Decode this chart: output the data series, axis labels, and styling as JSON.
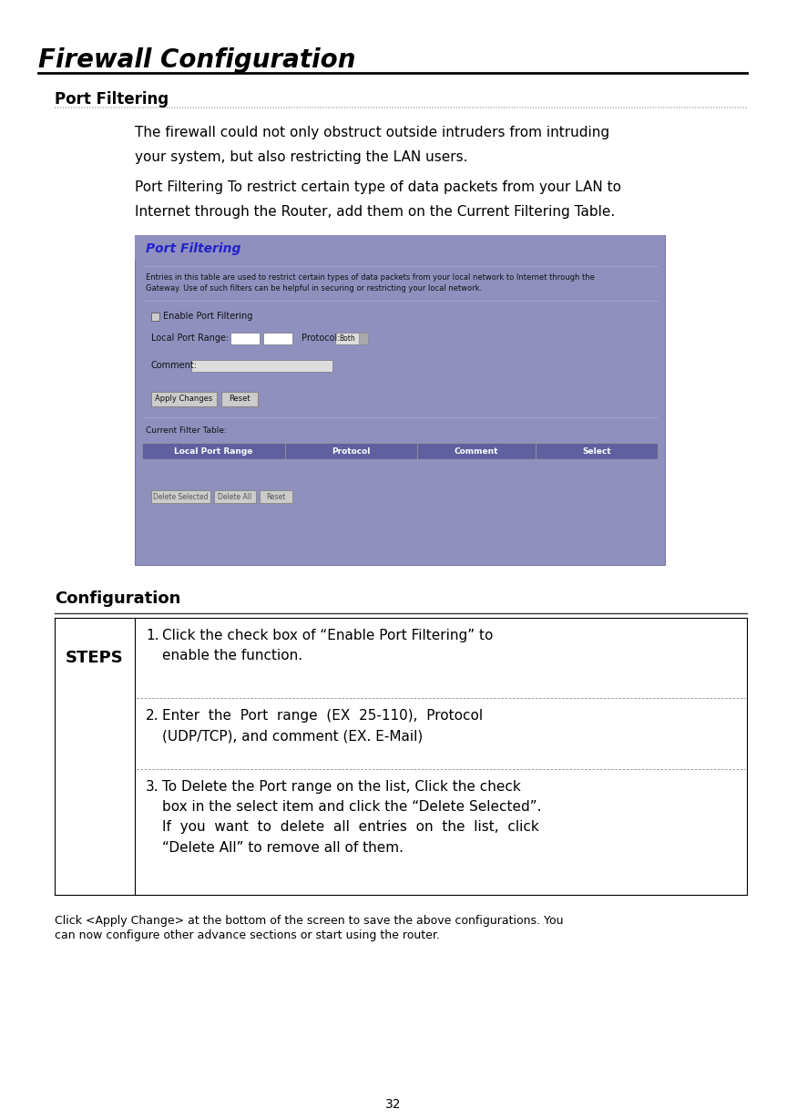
{
  "page_bg": "#ffffff",
  "title": "Firewall Configuration",
  "section1": "Port Filtering",
  "body_text1a": "The firewall could not only obstruct outside intruders from intruding",
  "body_text1b": "your system, but also restricting the LAN users.",
  "body_text2a": "Port Filtering To restrict certain type of data packets from your LAN to",
  "body_text2b": "Internet through the Router, add them on the Current Filtering Table.",
  "screenshot_bg": "#9090bf",
  "screenshot_title": "Port Filtering",
  "screenshot_title_color": "#2222cc",
  "screenshot_desc1": "Entries in this table are used to restrict certain types of data packets from your local network to Internet through the",
  "screenshot_desc2": "Gateway. Use of such filters can be helpful in securing or restricting your local network.",
  "screenshot_checkbox_label": "Enable Port Filtering",
  "screenshot_port_label": "Local Port Range:",
  "screenshot_protocol_label": "Protocol:",
  "screenshot_protocol_val": "Both",
  "screenshot_comment_label": "Comment:",
  "screenshot_btn1": "Apply Changes",
  "screenshot_btn2": "Reset",
  "screenshot_table_title": "Current Filter Table:",
  "screenshot_col1": "Local Port Range",
  "screenshot_col2": "Protocol",
  "screenshot_col3": "Comment",
  "screenshot_col4": "Select",
  "screenshot_delbtn1": "Delete Selected",
  "screenshot_delbtn2": "Delete All",
  "screenshot_delbtn3": "Reset",
  "section2": "Configuration",
  "steps_label": "STEPS",
  "step1_num": "1.",
  "step1_text": "Click the check box of “Enable Port Filtering” to\nenable the function.",
  "step2_num": "2.",
  "step2_text": "Enter  the  Port  range  (EX  25-110),  Protocol\n(UDP/TCP), and comment (EX. E-Mail)",
  "step3_num": "3.",
  "step3_text": "To Delete the Port range on the list, Click the check\nbox in the select item and click the “Delete Selected”.\nIf  you  want  to  delete  all  entries  on  the  list,  click\n“Delete All” to remove all of them.",
  "footer_text1": "Click <Apply Change> at the bottom of the screen to save the above configurations. You",
  "footer_text2": "can now configure other advance sections or start using the router.",
  "page_number": "32",
  "col_header_bg": "#6060a0",
  "col_header_fg": "#ffffff"
}
